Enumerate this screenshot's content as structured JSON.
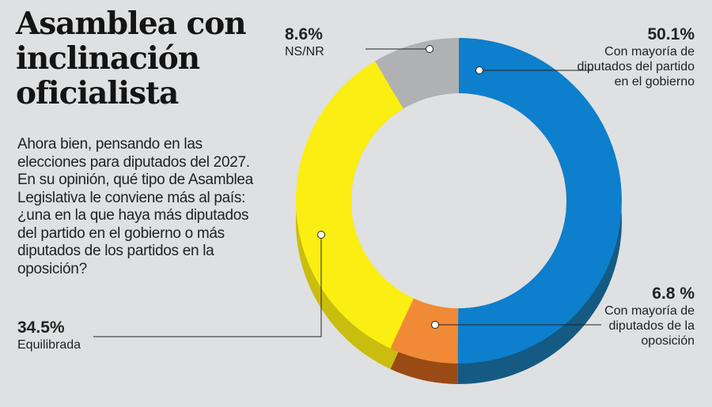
{
  "title": [
    "Asamblea con",
    "inclinación",
    "oficialista"
  ],
  "question": "Ahora bien, pensando en las elecciones para diputados del 2027. En su opinión, qué tipo de Asamblea Legislativa le conviene más al país: ¿una en la que haya más diputados del partido en el gobierno o más diputados de los partidos en la oposición?",
  "labels": {
    "nsnr": {
      "pct": "8.6%",
      "text": "NS/NR"
    },
    "oficial": {
      "pct": "50.1%",
      "text": "Con mayoría de diputados del partido en el gobierno"
    },
    "oposicion": {
      "pct": "6.8 %",
      "text": "Con mayoría de diputados de la oposición"
    },
    "equilibrada": {
      "pct": "34.5%",
      "text": "Equilibrada"
    }
  },
  "chart_data": {
    "type": "pie",
    "categories": [
      "Con mayoría de diputados del partido en el gobierno",
      "Con mayoría de diputados de la oposición",
      "Equilibrada",
      "NS/NR"
    ],
    "values": [
      50.1,
      6.8,
      34.5,
      8.6
    ],
    "colors": [
      "#0d7fcc",
      "#f08a36",
      "#fbee12",
      "#b0b1b3"
    ],
    "side_colors": [
      "#155a82",
      "#9a4a14",
      "#c9bd10",
      "#555658"
    ],
    "donut": true
  }
}
